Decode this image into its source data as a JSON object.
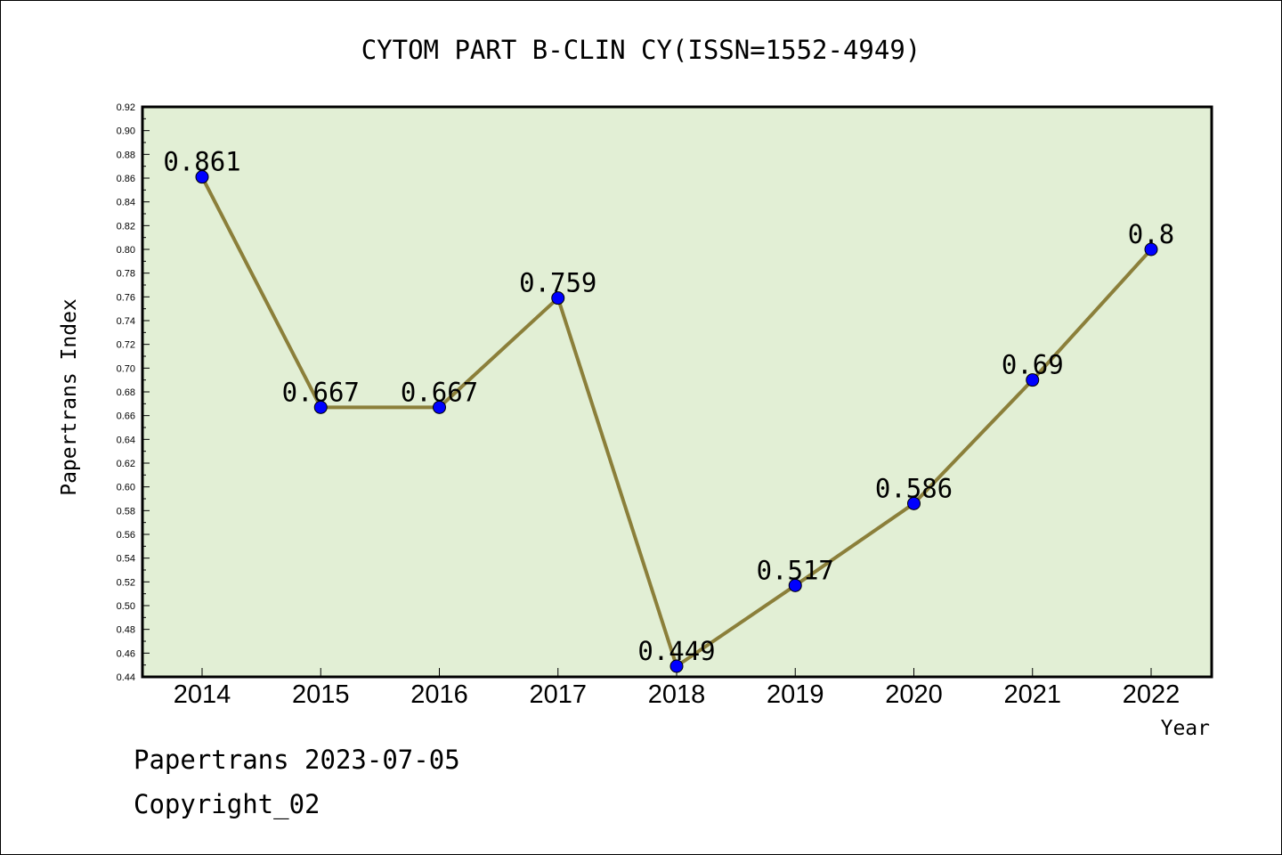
{
  "chart_data": {
    "type": "line",
    "title": "CYTOM PART B-CLIN CY(ISSN=1552-4949)",
    "xlabel": "Year",
    "ylabel": "Papertrans Index",
    "categories": [
      "2014",
      "2015",
      "2016",
      "2017",
      "2018",
      "2019",
      "2020",
      "2021",
      "2022"
    ],
    "values": [
      0.861,
      0.667,
      0.667,
      0.759,
      0.449,
      0.517,
      0.586,
      0.69,
      0.8
    ],
    "data_labels": [
      "0.861",
      "0.667",
      "0.667",
      "0.759",
      "0.449",
      "0.517",
      "0.586",
      "0.69",
      "0.8"
    ],
    "ylim": [
      0.44,
      0.92
    ],
    "y_ticks": [
      "0.44",
      "0.46",
      "0.48",
      "0.50",
      "0.52",
      "0.54",
      "0.56",
      "0.58",
      "0.60",
      "0.62",
      "0.64",
      "0.66",
      "0.68",
      "0.70",
      "0.72",
      "0.74",
      "0.76",
      "0.78",
      "0.80",
      "0.82",
      "0.84",
      "0.86",
      "0.88",
      "0.90",
      "0.92"
    ],
    "grid": false,
    "colors": {
      "plot_background": "#e2efd5",
      "line": "#8b7f3a",
      "marker": "#0000ff"
    }
  },
  "footer": {
    "line1": "Papertrans 2023-07-05",
    "line2": "Copyright_02"
  }
}
